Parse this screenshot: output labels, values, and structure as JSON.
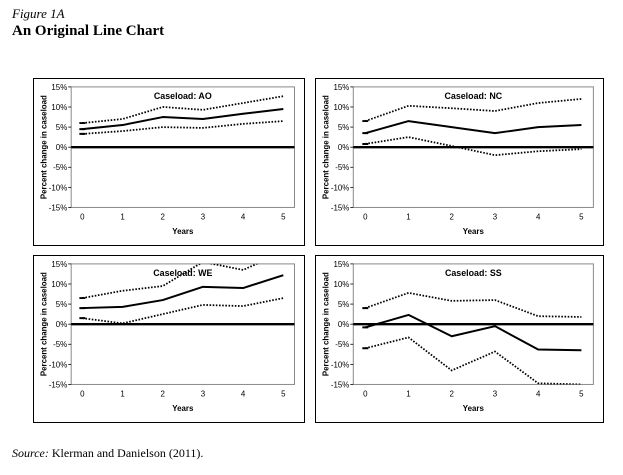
{
  "figure": {
    "label": "Figure 1A",
    "title": "An Original Line Chart",
    "source_prefix": "Source:",
    "source_text": " Klerman and Danielson (2011)."
  },
  "chart_data": [
    {
      "type": "line",
      "title": "Caseload: AO",
      "xlabel": "Years",
      "ylabel": "Percent change in caseload",
      "x": [
        0,
        1,
        2,
        3,
        4,
        5
      ],
      "xlim": [
        0,
        5
      ],
      "ylim": [
        -15,
        15
      ],
      "y_ticks": [
        "15%",
        "10%",
        "5%",
        "0%",
        "-5%",
        "-10%",
        "-15%"
      ],
      "x_ticks": [
        "0",
        "1",
        "2",
        "3",
        "4",
        "5"
      ],
      "series": [
        {
          "style": "solid",
          "values": [
            4.5,
            5.5,
            7.5,
            7.0,
            8.3,
            9.5
          ]
        },
        {
          "style": "dotted",
          "values": [
            6.0,
            7.0,
            10.0,
            9.3,
            11.0,
            12.7
          ]
        },
        {
          "style": "dotted",
          "values": [
            3.3,
            4.0,
            5.0,
            4.8,
            5.8,
            6.5
          ]
        }
      ]
    },
    {
      "type": "line",
      "title": "Caseload: NC",
      "xlabel": "Years",
      "ylabel": "Percent change in caseload",
      "x": [
        0,
        1,
        2,
        3,
        4,
        5
      ],
      "xlim": [
        0,
        5
      ],
      "ylim": [
        -15,
        15
      ],
      "y_ticks": [
        "15%",
        "10%",
        "5%",
        "0%",
        "-5%",
        "-10%",
        "-15%"
      ],
      "x_ticks": [
        "0",
        "1",
        "2",
        "3",
        "4",
        "5"
      ],
      "series": [
        {
          "style": "solid",
          "values": [
            3.5,
            6.5,
            5.0,
            3.5,
            5.0,
            5.5
          ]
        },
        {
          "style": "dotted",
          "values": [
            6.5,
            10.3,
            9.7,
            9.0,
            11.0,
            12.0
          ]
        },
        {
          "style": "dotted",
          "values": [
            0.8,
            2.5,
            0.3,
            -2.0,
            -1.0,
            -0.5
          ]
        }
      ]
    },
    {
      "type": "line",
      "title": "Caseload: WE",
      "xlabel": "Years",
      "ylabel": "Percent change in caseload",
      "x": [
        0,
        1,
        2,
        3,
        4,
        5
      ],
      "xlim": [
        0,
        5
      ],
      "ylim": [
        -15,
        15
      ],
      "y_ticks": [
        "15%",
        "10%",
        "5%",
        "0%",
        "-5%",
        "-10%",
        "-15%"
      ],
      "x_ticks": [
        "0",
        "1",
        "2",
        "3",
        "4",
        "5"
      ],
      "series": [
        {
          "style": "solid",
          "values": [
            4.0,
            4.3,
            6.0,
            9.3,
            9.0,
            12.2
          ]
        },
        {
          "style": "dotted",
          "values": [
            6.5,
            8.3,
            9.5,
            15.5,
            13.5,
            18.0
          ]
        },
        {
          "style": "dotted",
          "values": [
            1.5,
            0.2,
            2.5,
            4.8,
            4.5,
            6.5
          ]
        }
      ]
    },
    {
      "type": "line",
      "title": "Caseload: SS",
      "xlabel": "Years",
      "ylabel": "Percent change in caseload",
      "x": [
        0,
        1,
        2,
        3,
        4,
        5
      ],
      "xlim": [
        0,
        5
      ],
      "ylim": [
        -15,
        15
      ],
      "y_ticks": [
        "15%",
        "10%",
        "5%",
        "0%",
        "-5%",
        "-10%",
        "-15%"
      ],
      "x_ticks": [
        "0",
        "1",
        "2",
        "3",
        "4",
        "5"
      ],
      "series": [
        {
          "style": "solid",
          "values": [
            -0.8,
            2.3,
            -3.0,
            -0.5,
            -6.3,
            -6.5
          ]
        },
        {
          "style": "dotted",
          "values": [
            4.0,
            7.8,
            5.8,
            6.0,
            2.0,
            1.8
          ]
        },
        {
          "style": "dotted",
          "values": [
            -6.0,
            -3.3,
            -11.5,
            -6.8,
            -14.7,
            -15.0
          ]
        }
      ]
    }
  ]
}
